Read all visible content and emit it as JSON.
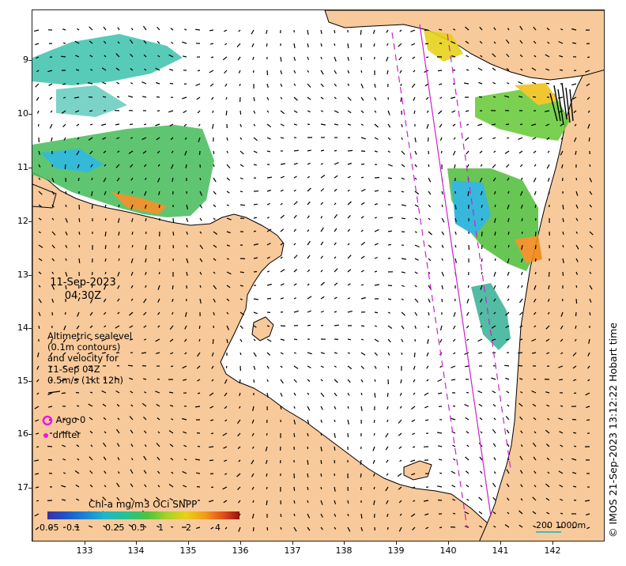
{
  "map": {
    "date": "11-Sep-2023",
    "time": "04:30Z",
    "legend_lines": [
      "Altimetric sealevel",
      "(0.1m contours)",
      "and velocity for",
      "11-Sep 04Z",
      "0.5m/s (1kt 12h)"
    ],
    "argo_label": "Argo 0",
    "drifter_label": "drifter",
    "colorbar": {
      "title": "Chl-a mg/m3 OCi SNPP",
      "ticks": [
        "0.05",
        "0.1",
        "0.25",
        "0.5",
        "1",
        "2",
        "4"
      ]
    },
    "x_ticks": [
      "133",
      "134",
      "135",
      "136",
      "137",
      "138",
      "139",
      "140",
      "141",
      "142"
    ],
    "y_ticks": [
      "9",
      "10",
      "11",
      "12",
      "13",
      "14",
      "15",
      "16",
      "17"
    ],
    "scale_label": "200  1000m",
    "copyright": "© IMOS 21-Sep-2023 13:12:22 Hobart time",
    "colors": {
      "land": "#f8c99a",
      "sea": "#ffffff",
      "track": "#cc22cc",
      "argo": "#ee11ee"
    }
  }
}
